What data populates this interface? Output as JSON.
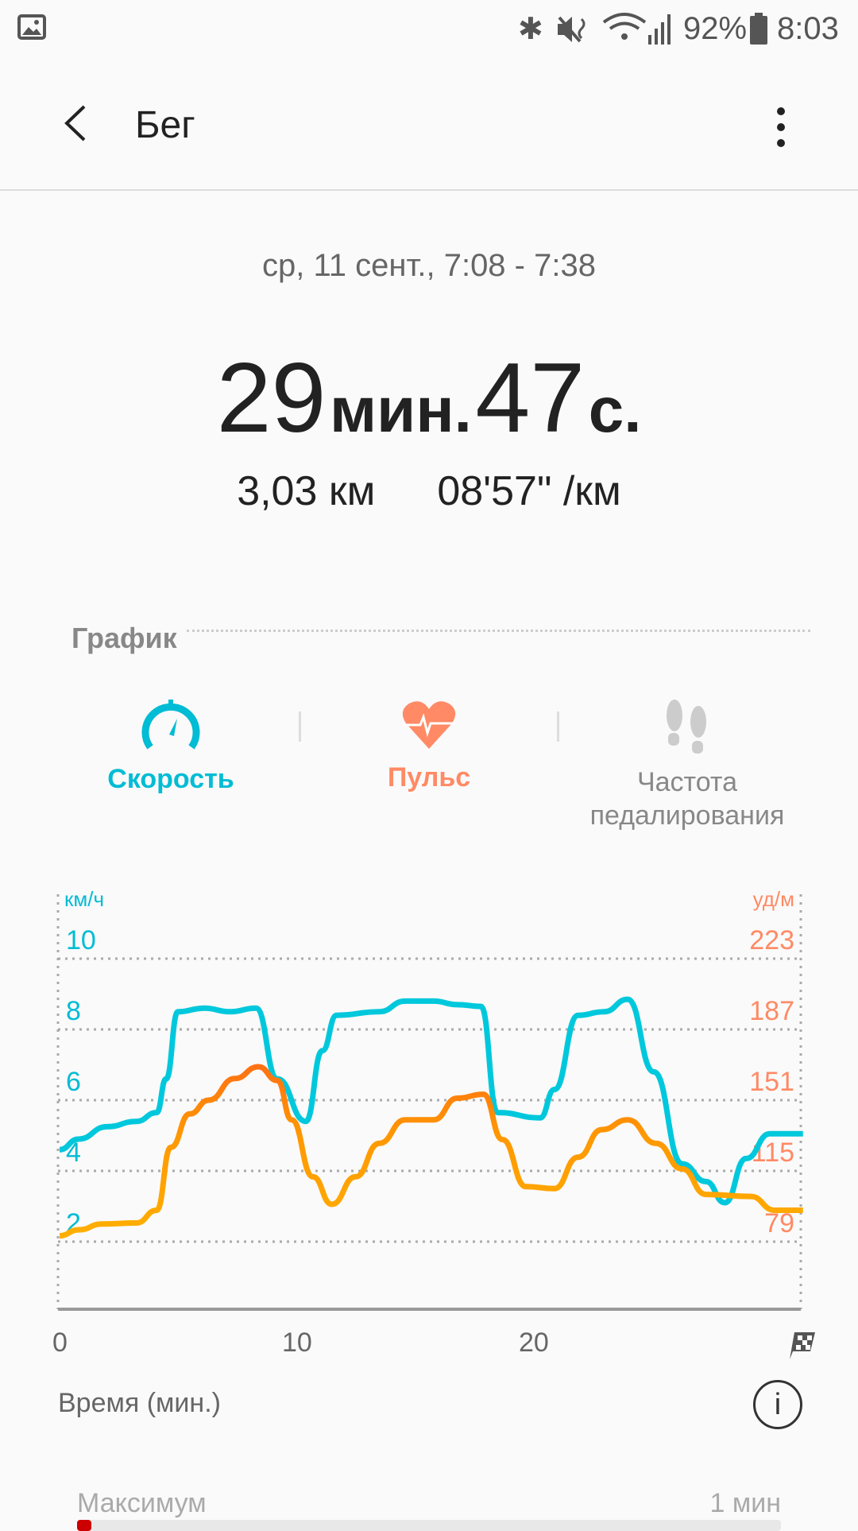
{
  "status_bar": {
    "battery": "92%",
    "time": "8:03"
  },
  "app_bar": {
    "title": "Бег"
  },
  "summary": {
    "date_range": "ср, 11 сент., 7:08 - 7:38",
    "duration_min": "29",
    "duration_min_unit": "мин.",
    "duration_sec": "47",
    "duration_sec_unit": "с.",
    "distance": "3,03 км",
    "pace": "08'57\" /км"
  },
  "graph_section": {
    "title": "График",
    "tabs": [
      {
        "label": "Скорость",
        "icon": "speedometer-icon",
        "color": "#00BCD4"
      },
      {
        "label": "Пульс",
        "icon": "heart-rate-icon",
        "color": "#FF8A65"
      },
      {
        "label": "Частота педалирования",
        "icon": "footprints-icon",
        "color": "#9E9E9E"
      }
    ],
    "x_axis_label": "Время (мин.)"
  },
  "chart_data": {
    "type": "line",
    "xlabel": "Время (мин.)",
    "x_ticks": [
      "0",
      "10",
      "20"
    ],
    "xlim": [
      0,
      31.4
    ],
    "left_axis": {
      "label": "км/ч",
      "ticks": [
        "2",
        "4",
        "6",
        "8",
        "10"
      ],
      "ylim": [
        0,
        10
      ],
      "color": "#00BCD4"
    },
    "right_axis": {
      "label": "уд/м",
      "ticks": [
        "79",
        "115",
        "151",
        "187",
        "223"
      ],
      "ylim": [
        43,
        223
      ],
      "color": "#FF8A65"
    },
    "grid": true,
    "series": [
      {
        "axis": "left",
        "color": "#00C8DC",
        "x": [
          0,
          0.8,
          2.0,
          3.25,
          4.1,
          4.5,
          5.0,
          6.1,
          7.2,
          8.3,
          9.2,
          10.4,
          11.1,
          11.7,
          13.5,
          14.6,
          15.8,
          16.8,
          17.8,
          18.5,
          20.3,
          20.9,
          21.9,
          23.0,
          24.0,
          25.1,
          26.3,
          27.3,
          28.1,
          29.0,
          30.0,
          31.4
        ],
        "y": [
          4.6,
          4.9,
          5.25,
          5.4,
          5.65,
          6.6,
          8.5,
          8.6,
          8.5,
          8.6,
          6.6,
          5.4,
          7.4,
          8.4,
          8.5,
          8.8,
          8.8,
          8.7,
          8.65,
          5.65,
          5.5,
          6.3,
          8.4,
          8.5,
          8.85,
          6.8,
          4.2,
          3.7,
          3.1,
          4.35,
          5.05,
          5.05
        ]
      },
      {
        "axis": "right",
        "color": "#FF9800",
        "x": [
          0,
          0.8,
          1.8,
          3.25,
          4.1,
          4.7,
          5.5,
          6.3,
          7.4,
          8.4,
          9.2,
          9.8,
          10.7,
          11.5,
          12.5,
          13.5,
          14.6,
          15.8,
          16.8,
          17.9,
          18.7,
          19.7,
          20.9,
          21.9,
          22.9,
          24.0,
          25.2,
          26.3,
          27.3,
          29.2,
          30.2,
          31.4
        ],
        "y": [
          82,
          85,
          88,
          88.5,
          95,
          127,
          144,
          151,
          162,
          168,
          161,
          141,
          112,
          98,
          112,
          129,
          141,
          141,
          152,
          154,
          131,
          107,
          106,
          122,
          136,
          141,
          129,
          116,
          103,
          102,
          95,
          95
        ]
      }
    ]
  },
  "stats": {
    "label": "Максимум",
    "value": "1 мин",
    "fill_fraction": 0.02
  }
}
